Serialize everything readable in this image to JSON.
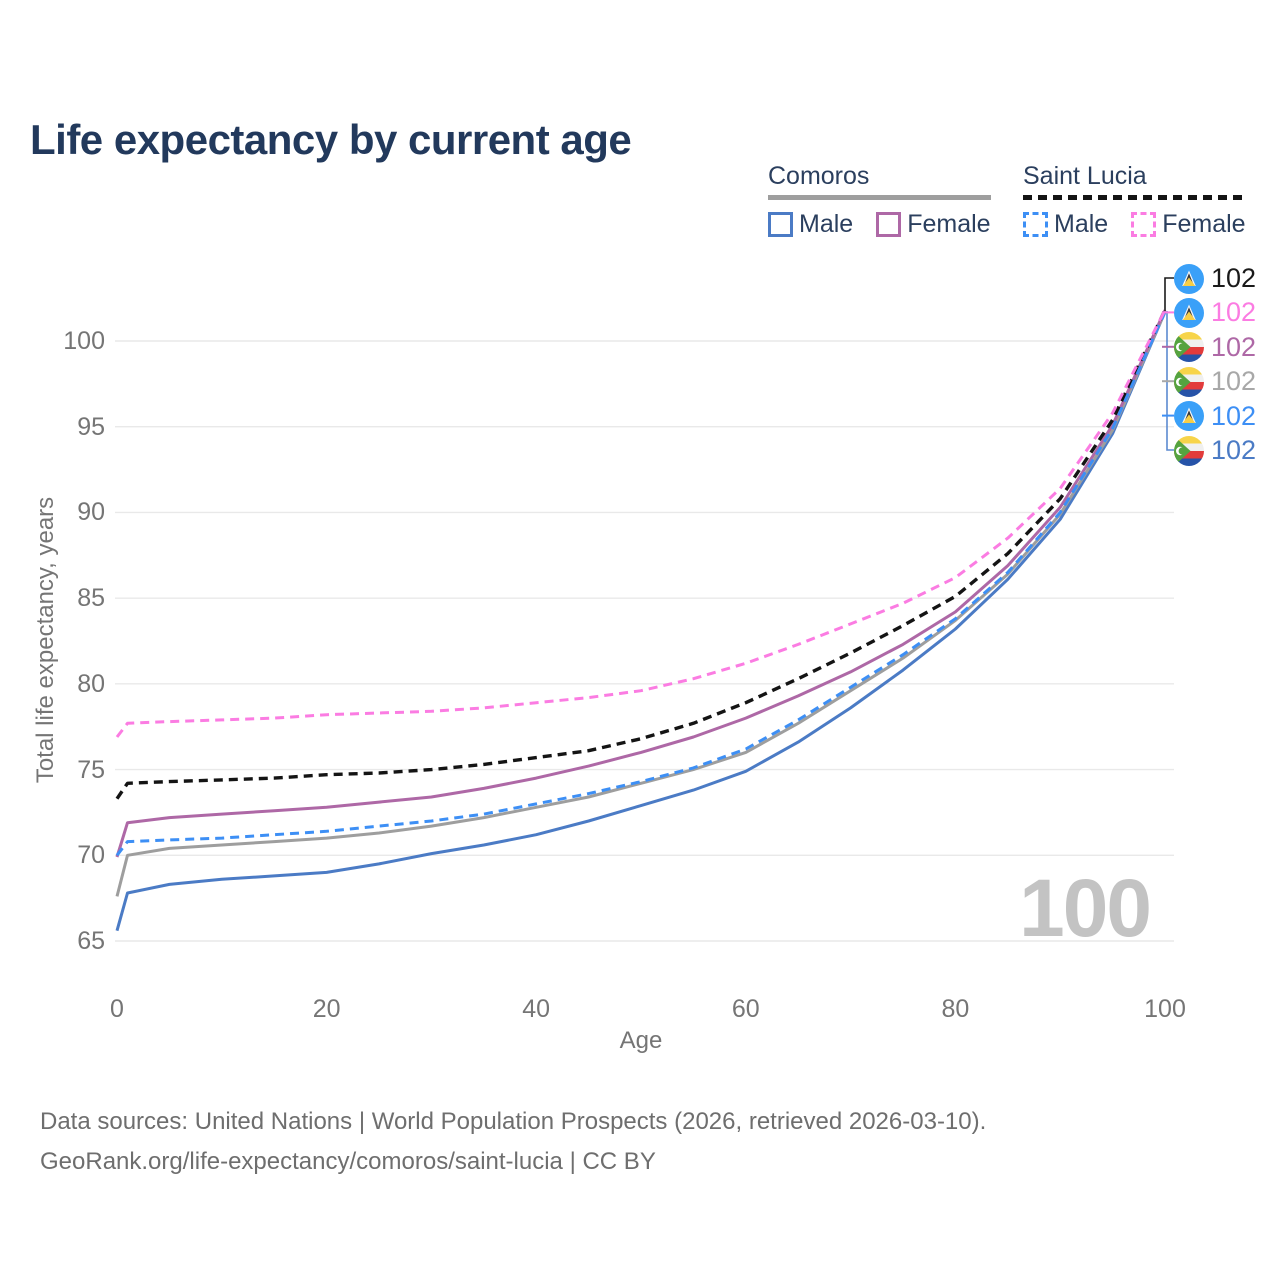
{
  "page": {
    "title": "Life expectancy by current age",
    "watermark_age": "100",
    "footer_line1": "Data sources: United Nations | World Population Prospects (2026, retrieved 2026-03-10).",
    "footer_line2": "GeoRank.org/life-expectancy/comoros/saint-lucia | CC BY"
  },
  "legend": {
    "comoros": {
      "title": "Comoros",
      "male_label": "Male",
      "female_label": "Female",
      "male_color": "#4b7bc5",
      "female_color": "#ae68a6",
      "underline_color": "#9e9e9e"
    },
    "saint_lucia": {
      "title": "Saint Lucia",
      "male_label": "Male",
      "female_label": "Female",
      "male_color": "#3d8ff5",
      "female_color": "#fb7ce2",
      "underline_color": "#141414"
    }
  },
  "colors": {
    "grid": "#e9e9e9",
    "leader_black": "#1a1a1a",
    "leader_blue": "#5b8ad0",
    "title_text": "#22395c",
    "axis_text": "#757575"
  },
  "chart_data": {
    "type": "line",
    "title": "Life expectancy by current age",
    "xlabel": "Age",
    "ylabel": "Total life expectancy, years",
    "xlim": [
      0,
      100
    ],
    "ylim": [
      65,
      100
    ],
    "xticks": [
      0,
      20,
      40,
      60,
      80,
      100
    ],
    "yticks": [
      65,
      70,
      75,
      80,
      85,
      90,
      95,
      100
    ],
    "grid": "horizontal-only",
    "legend_position": "top-right",
    "x": [
      0,
      1,
      5,
      10,
      15,
      20,
      25,
      30,
      35,
      40,
      45,
      50,
      55,
      60,
      65,
      70,
      75,
      80,
      85,
      90,
      95,
      100
    ],
    "series": [
      {
        "id": "comoros-male",
        "name": "Comoros Male",
        "country": "Comoros",
        "sex": "Male",
        "color": "#4b7bc5",
        "dashed": false,
        "values": [
          65.6,
          67.8,
          68.3,
          68.6,
          68.8,
          69.0,
          69.5,
          70.1,
          70.6,
          71.2,
          72.0,
          72.9,
          73.8,
          74.9,
          76.6,
          78.6,
          80.8,
          83.2,
          86.1,
          89.6,
          94.6,
          101.7
        ]
      },
      {
        "id": "comoros-both",
        "name": "Comoros Both sexes",
        "country": "Comoros",
        "sex": "Both",
        "color": "#9e9e9e",
        "dashed": false,
        "values": [
          67.6,
          70.0,
          70.4,
          70.6,
          70.8,
          71.0,
          71.3,
          71.7,
          72.2,
          72.8,
          73.4,
          74.2,
          75.0,
          76.0,
          77.7,
          79.6,
          81.5,
          83.7,
          86.4,
          89.9,
          94.8,
          101.7
        ]
      },
      {
        "id": "comoros-female",
        "name": "Comoros Female",
        "country": "Comoros",
        "sex": "Female",
        "color": "#ae68a6",
        "dashed": false,
        "values": [
          69.9,
          71.9,
          72.2,
          72.4,
          72.6,
          72.8,
          73.1,
          73.4,
          73.9,
          74.5,
          75.2,
          76.0,
          76.9,
          78.0,
          79.3,
          80.7,
          82.3,
          84.2,
          86.9,
          90.3,
          95.1,
          101.8
        ]
      },
      {
        "id": "saint-lucia-both",
        "name": "Saint Lucia Both sexes",
        "country": "Saint Lucia",
        "sex": "Both",
        "color": "#141414",
        "dashed": true,
        "values": [
          73.3,
          74.2,
          74.3,
          74.4,
          74.5,
          74.7,
          74.8,
          75.0,
          75.3,
          75.7,
          76.1,
          76.8,
          77.7,
          78.9,
          80.3,
          81.8,
          83.4,
          85.1,
          87.6,
          90.8,
          95.4,
          101.8
        ]
      },
      {
        "id": "saint-lucia-male",
        "name": "Saint Lucia Male",
        "country": "Saint Lucia",
        "sex": "Male",
        "color": "#3d8ff5",
        "dashed": true,
        "values": [
          70.0,
          70.8,
          70.9,
          71.0,
          71.2,
          71.4,
          71.7,
          72.0,
          72.4,
          73.0,
          73.6,
          74.3,
          75.1,
          76.2,
          77.9,
          79.8,
          81.7,
          83.8,
          86.5,
          90.0,
          94.9,
          101.7
        ]
      },
      {
        "id": "saint-lucia-female",
        "name": "Saint Lucia Female",
        "country": "Saint Lucia",
        "sex": "Female",
        "color": "#fb7ce2",
        "dashed": true,
        "values": [
          76.9,
          77.7,
          77.8,
          77.9,
          78.0,
          78.2,
          78.3,
          78.4,
          78.6,
          78.9,
          79.2,
          79.6,
          80.3,
          81.2,
          82.3,
          83.5,
          84.7,
          86.2,
          88.5,
          91.4,
          95.8,
          101.8
        ]
      }
    ],
    "end_labels": [
      {
        "flag": "saint-lucia",
        "series": "saint-lucia-both",
        "value": "102",
        "color": "#1a1a1a"
      },
      {
        "flag": "saint-lucia",
        "series": "saint-lucia-female",
        "value": "102",
        "color": "#fb7ce2"
      },
      {
        "flag": "comoros",
        "series": "comoros-female",
        "value": "102",
        "color": "#ae68a6"
      },
      {
        "flag": "comoros",
        "series": "comoros-both",
        "value": "102",
        "color": "#a8a8a8"
      },
      {
        "flag": "saint-lucia",
        "series": "saint-lucia-male",
        "value": "102",
        "color": "#3d8ff5"
      },
      {
        "flag": "comoros",
        "series": "comoros-male",
        "value": "102",
        "color": "#4b7bc5"
      }
    ]
  }
}
